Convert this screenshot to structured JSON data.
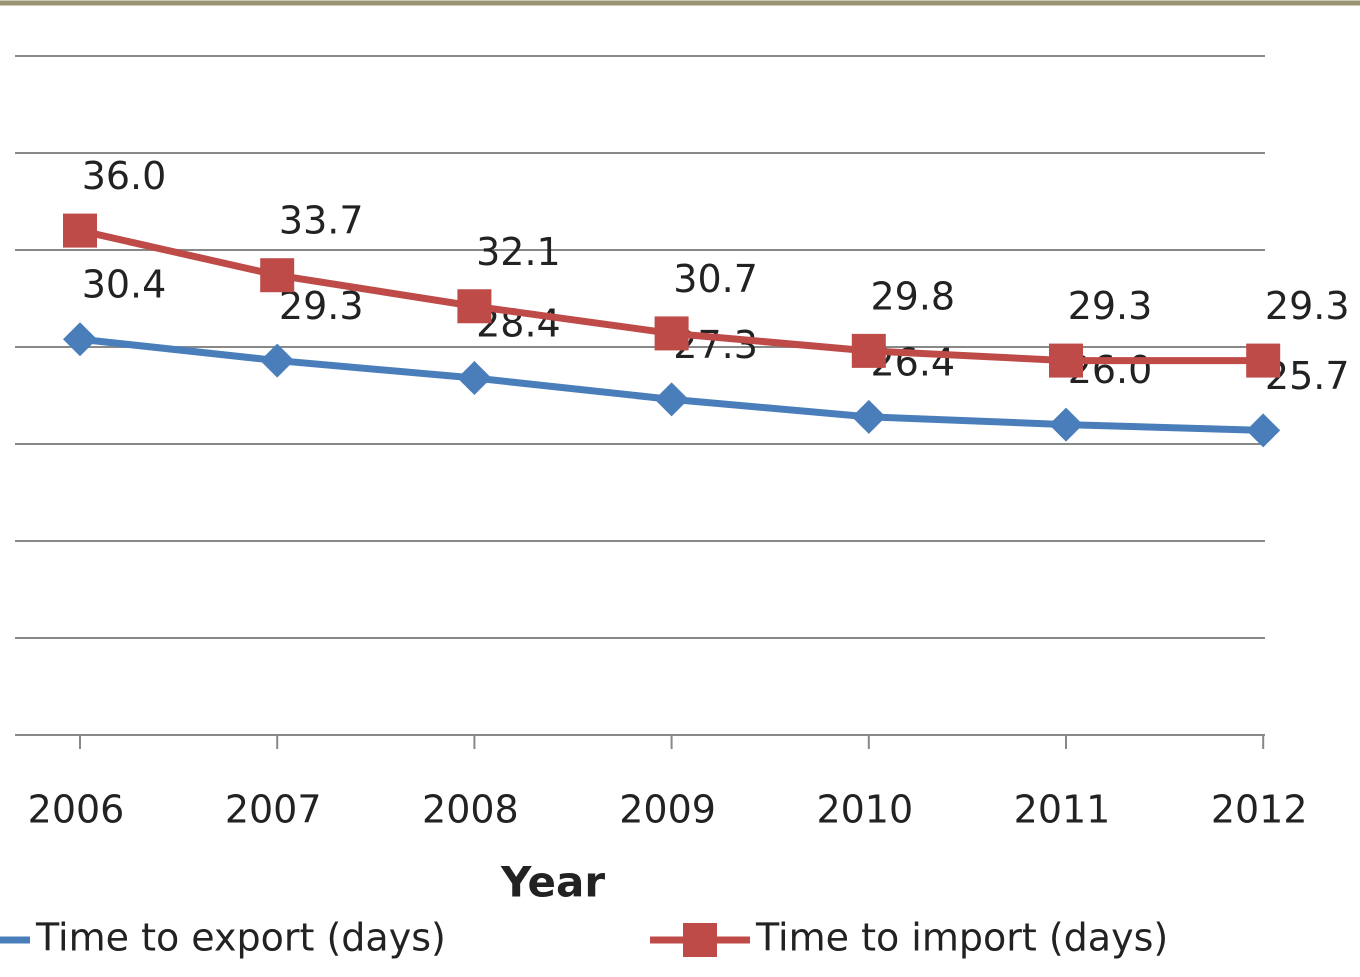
{
  "chart_data": {
    "type": "line",
    "x_label": "Year",
    "categories": [
      "2006",
      "2007",
      "2008",
      "2009",
      "2010",
      "2011",
      "2012"
    ],
    "series": [
      {
        "name": "Time to export (days)",
        "color": "#4a7ebb",
        "marker": "diamond",
        "values": [
          30.4,
          29.3,
          28.4,
          27.3,
          26.4,
          26.0,
          25.7
        ]
      },
      {
        "name": "Time to import (days)",
        "color": "#be4b48",
        "marker": "square",
        "values": [
          36.0,
          33.7,
          32.1,
          30.7,
          29.8,
          29.3,
          29.3
        ]
      }
    ],
    "ylim": [
      10,
      45
    ],
    "yticks": [
      10,
      15,
      20,
      25,
      30,
      35,
      40,
      45
    ],
    "grid": true
  }
}
